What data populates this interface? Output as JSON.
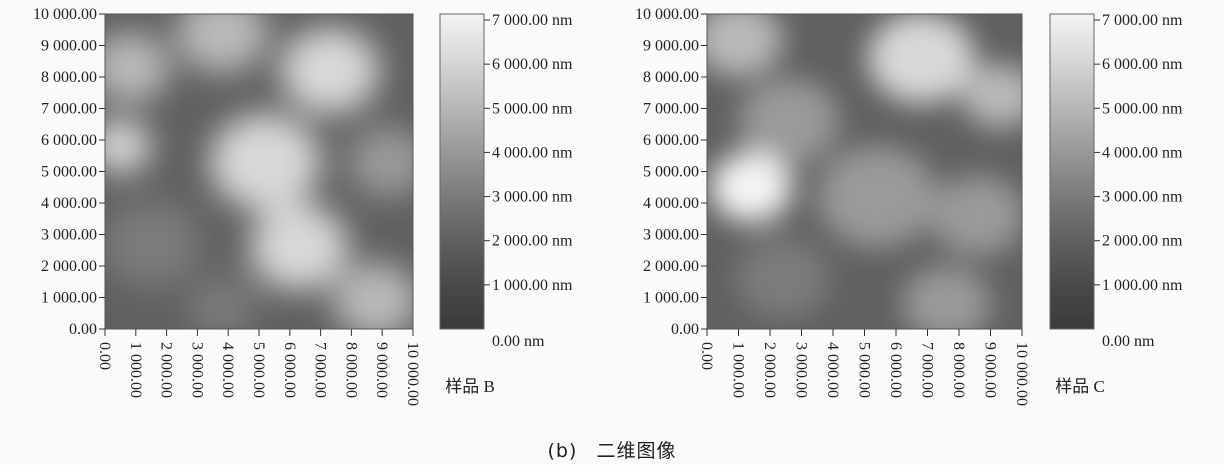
{
  "caption": {
    "label": "(b)",
    "text": "二维图像"
  },
  "chart_data": [
    {
      "type": "heatmap",
      "title": "样品 B",
      "x_ticks": [
        "0.00",
        "1 000.00",
        "2 000.00",
        "3 000.00",
        "4 000.00",
        "5 000.00",
        "6 000.00",
        "7 000.00",
        "8 000.00",
        "9 000.00",
        "10 000.00"
      ],
      "y_ticks": [
        "0.00",
        "1 000.00",
        "2 000.00",
        "3 000.00",
        "4 000.00",
        "5 000.00",
        "6 000.00",
        "7 000.00",
        "8 000.00",
        "9 000.00",
        "10 000.00"
      ],
      "xlim": [
        0,
        10000
      ],
      "ylim": [
        0,
        10000
      ],
      "colorbar": {
        "range": [
          0,
          7000
        ],
        "unit": "nm",
        "labels": [
          "7 000.00 nm",
          "6 000.00 nm",
          "5 000.00 nm",
          "4 000.00 nm",
          "3 000.00 nm",
          "2 000.00 nm",
          "1 000.00 nm",
          "0.00 nm"
        ],
        "colors": [
          "#f4f4f4",
          "#d8d8d8",
          "#b9b9b9",
          "#9a9a9a",
          "#7c7c7c",
          "#606060",
          "#4a4a4a",
          "#3a3a3a"
        ]
      },
      "height_blobs": [
        {
          "x": 800,
          "y": 8300,
          "r": 1300,
          "h": 5200
        },
        {
          "x": 3800,
          "y": 9400,
          "r": 1500,
          "h": 5000
        },
        {
          "x": 7300,
          "y": 8200,
          "r": 1600,
          "h": 6000
        },
        {
          "x": 500,
          "y": 5800,
          "r": 1000,
          "h": 5600
        },
        {
          "x": 5200,
          "y": 5300,
          "r": 1800,
          "h": 5800
        },
        {
          "x": 9200,
          "y": 5300,
          "r": 1300,
          "h": 4200
        },
        {
          "x": 1500,
          "y": 2700,
          "r": 1600,
          "h": 3400
        },
        {
          "x": 6300,
          "y": 2600,
          "r": 1600,
          "h": 5600
        },
        {
          "x": 8800,
          "y": 900,
          "r": 1400,
          "h": 4600
        },
        {
          "x": 3800,
          "y": 700,
          "r": 1100,
          "h": 3200
        }
      ],
      "base_height": 2300
    },
    {
      "type": "heatmap",
      "title": "样品 C",
      "x_ticks": [
        "0.00",
        "1 000.00",
        "2 000.00",
        "3 000.00",
        "4 000.00",
        "5 000.00",
        "6 000.00",
        "7 000.00",
        "8 000.00",
        "9 000.00",
        "10 000.00"
      ],
      "y_ticks": [
        "0.00",
        "1 000.00",
        "2 000.00",
        "3 000.00",
        "4 000.00",
        "5 000.00",
        "6 000.00",
        "7 000.00",
        "8 000.00",
        "9 000.00",
        "10 000.00"
      ],
      "xlim": [
        0,
        10000
      ],
      "ylim": [
        0,
        10000
      ],
      "colorbar": {
        "range": [
          0,
          7000
        ],
        "unit": "nm",
        "labels": [
          "7 000.00 nm",
          "6 000.00 nm",
          "5 000.00 nm",
          "4 000.00 nm",
          "3 000.00 nm",
          "2 000.00 nm",
          "1 000.00 nm",
          "0.00 nm"
        ],
        "colors": [
          "#f4f4f4",
          "#d8d8d8",
          "#b9b9b9",
          "#9a9a9a",
          "#7c7c7c",
          "#606060",
          "#4a4a4a",
          "#3a3a3a"
        ]
      },
      "height_blobs": [
        {
          "x": 1000,
          "y": 9200,
          "r": 1400,
          "h": 4600
        },
        {
          "x": 6800,
          "y": 8600,
          "r": 1700,
          "h": 5800
        },
        {
          "x": 9300,
          "y": 7400,
          "r": 1200,
          "h": 5000
        },
        {
          "x": 2600,
          "y": 6600,
          "r": 1600,
          "h": 4400
        },
        {
          "x": 1400,
          "y": 4500,
          "r": 1300,
          "h": 6600
        },
        {
          "x": 5400,
          "y": 4200,
          "r": 1900,
          "h": 3600
        },
        {
          "x": 8600,
          "y": 3600,
          "r": 1500,
          "h": 4400
        },
        {
          "x": 2400,
          "y": 1600,
          "r": 1500,
          "h": 3400
        },
        {
          "x": 7600,
          "y": 800,
          "r": 1400,
          "h": 4200
        }
      ],
      "base_height": 2500
    }
  ]
}
